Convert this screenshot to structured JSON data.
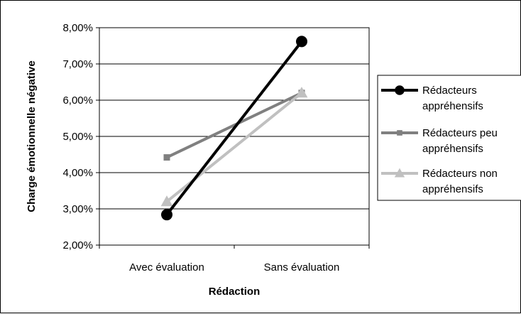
{
  "chart_data": {
    "type": "line",
    "categories": [
      "Avec évaluation",
      "Sans évaluation"
    ],
    "xlabel": "Rédaction",
    "ylabel": "Charge émotionnelle négative",
    "ylim": [
      0.02,
      0.08
    ],
    "yticks": [
      "2,00%",
      "3,00%",
      "4,00%",
      "5,00%",
      "6,00%",
      "7,00%",
      "8,00%"
    ],
    "grid": "horizontal",
    "legend_position": "right",
    "series": [
      {
        "name_lines": [
          "Rédacteurs",
          "appréhensifs"
        ],
        "values": [
          0.0284,
          0.0762
        ],
        "color": "#000000",
        "marker": "circle"
      },
      {
        "name_lines": [
          "Rédacteurs peu",
          "appréhensifs"
        ],
        "values": [
          0.0442,
          0.062
        ],
        "color": "#808080",
        "marker": "square"
      },
      {
        "name_lines": [
          "Rédacteurs non",
          "appréhensifs"
        ],
        "values": [
          0.032,
          0.062
        ],
        "color": "#c0c0c0",
        "marker": "triangle"
      }
    ]
  }
}
